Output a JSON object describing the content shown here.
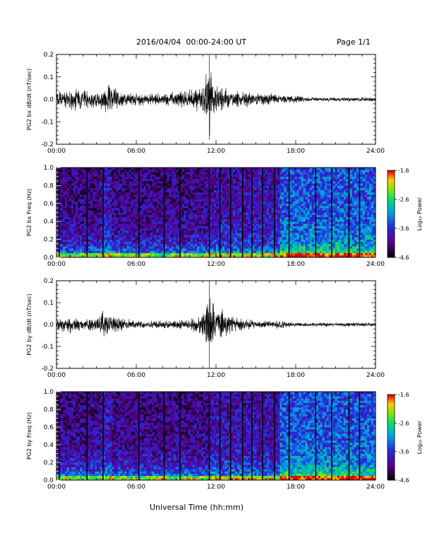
{
  "header": {
    "date_range": "2016/04/04  00:00-24:00 UT",
    "page": "Page 1/1"
  },
  "footer": {
    "xlabel": "Universal Time (hh:mm)"
  },
  "chart_data": [
    {
      "type": "line",
      "ylabel": "PG2 bx dB/dt (nT/sec)",
      "xlim": [
        "00:00",
        "24:00"
      ],
      "ylim": [
        -0.2,
        0.2
      ],
      "xticks": [
        "00:00",
        "06:00",
        "12:00",
        "18:00",
        "24:00"
      ],
      "yticks": [
        "-0.2",
        "-0.1",
        "0.0",
        "0.1",
        "0.2"
      ],
      "color": "#000000",
      "series": [
        {
          "x": [
            "00:00",
            "01:00",
            "02:00",
            "03:00",
            "04:00",
            "05:00",
            "06:00",
            "07:00",
            "08:00",
            "09:00",
            "10:00",
            "11:00",
            "11:30",
            "12:00",
            "13:00",
            "14:00",
            "15:00",
            "16:00",
            "17:00",
            "18:00",
            "19:00",
            "20:00",
            "21:00",
            "22:00",
            "23:00",
            "24:00"
          ],
          "max": [
            0.04,
            0.06,
            0.05,
            0.03,
            0.07,
            0.04,
            0.03,
            0.03,
            0.03,
            0.04,
            0.05,
            0.06,
            0.2,
            0.07,
            0.05,
            0.04,
            0.03,
            0.03,
            0.02,
            0.02,
            0.01,
            0.01,
            0.01,
            0.01,
            0.01,
            0.01
          ],
          "min": [
            -0.04,
            -0.06,
            -0.05,
            -0.04,
            -0.07,
            -0.04,
            -0.03,
            -0.03,
            -0.03,
            -0.04,
            -0.05,
            -0.06,
            -0.18,
            -0.06,
            -0.05,
            -0.04,
            -0.03,
            -0.03,
            -0.02,
            -0.02,
            -0.01,
            -0.01,
            -0.01,
            -0.01,
            -0.01,
            -0.01
          ]
        }
      ]
    },
    {
      "type": "heatmap",
      "ylabel": "PG2 bx Freq (Hz)",
      "xlim": [
        "00:00",
        "24:00"
      ],
      "ylim": [
        0,
        1
      ],
      "xticks": [
        "00:00",
        "06:00",
        "12:00",
        "18:00",
        "24:00"
      ],
      "yticks": [
        "0.0",
        "0.2",
        "0.4",
        "0.6",
        "0.8",
        "1.0"
      ],
      "colorbar": {
        "label": "Log₁₀ Power",
        "ticks": [
          "-1.6",
          "-2.6",
          "-3.6",
          "-4.6"
        ],
        "range": [
          -4.6,
          -1.6
        ]
      },
      "gap_times_hours": [
        0.2,
        2.3,
        3.5,
        6.2,
        8.1,
        9.3,
        11.5,
        12.3,
        13.1,
        14.0,
        14.7,
        15.5,
        16.4,
        17.5,
        19.5,
        20.7,
        22.0,
        22.8
      ],
      "color": "#000000"
    },
    {
      "type": "line",
      "ylabel": "PG2 by dB/dt (nT/sec)",
      "xlim": [
        "00:00",
        "24:00"
      ],
      "ylim": [
        -0.2,
        0.2
      ],
      "xticks": [
        "00:00",
        "06:00",
        "12:00",
        "18:00",
        "24:00"
      ],
      "yticks": [
        "-0.2",
        "-0.1",
        "0.0",
        "0.1",
        "0.2"
      ],
      "color": "#000000",
      "series": [
        {
          "x": [
            "00:00",
            "01:00",
            "02:00",
            "03:00",
            "03:30",
            "04:00",
            "05:00",
            "06:00",
            "07:00",
            "08:00",
            "09:00",
            "10:00",
            "11:00",
            "11:30",
            "12:00",
            "12:30",
            "13:00",
            "14:00",
            "15:00",
            "16:00",
            "17:00",
            "18:00",
            "19:00",
            "20:00",
            "21:00",
            "22:00",
            "23:00",
            "24:00"
          ],
          "max": [
            0.03,
            0.04,
            0.03,
            0.05,
            0.08,
            0.05,
            0.03,
            0.02,
            0.02,
            0.02,
            0.02,
            0.03,
            0.06,
            0.2,
            0.08,
            0.09,
            0.05,
            0.03,
            0.02,
            0.02,
            0.02,
            0.01,
            0.01,
            0.01,
            0.01,
            0.01,
            0.01,
            0.01
          ],
          "min": [
            -0.03,
            -0.05,
            -0.03,
            -0.04,
            -0.07,
            -0.04,
            -0.03,
            -0.02,
            -0.02,
            -0.02,
            -0.02,
            -0.03,
            -0.06,
            -0.2,
            -0.06,
            -0.09,
            -0.05,
            -0.03,
            -0.02,
            -0.02,
            -0.02,
            -0.01,
            -0.01,
            -0.01,
            -0.01,
            -0.01,
            -0.01,
            -0.01
          ]
        }
      ]
    },
    {
      "type": "heatmap",
      "ylabel": "PG2 by Freq (Hz)",
      "xlim": [
        "00:00",
        "24:00"
      ],
      "ylim": [
        0,
        1
      ],
      "xticks": [
        "00:00",
        "06:00",
        "12:00",
        "18:00",
        "24:00"
      ],
      "yticks": [
        "0.0",
        "0.2",
        "0.4",
        "0.6",
        "0.8",
        "1.0"
      ],
      "colorbar": {
        "label": "Log₁₀ Power",
        "ticks": [
          "-1.6",
          "-2.6",
          "-3.6",
          "-4.6"
        ],
        "range": [
          -4.6,
          -1.6
        ]
      },
      "gap_times_hours": [
        0.2,
        2.3,
        3.5,
        6.2,
        8.1,
        9.3,
        11.5,
        12.3,
        13.1,
        14.0,
        14.7,
        15.5,
        16.4,
        17.5,
        19.5,
        20.7,
        22.0,
        22.8
      ],
      "color": "#000000"
    }
  ]
}
